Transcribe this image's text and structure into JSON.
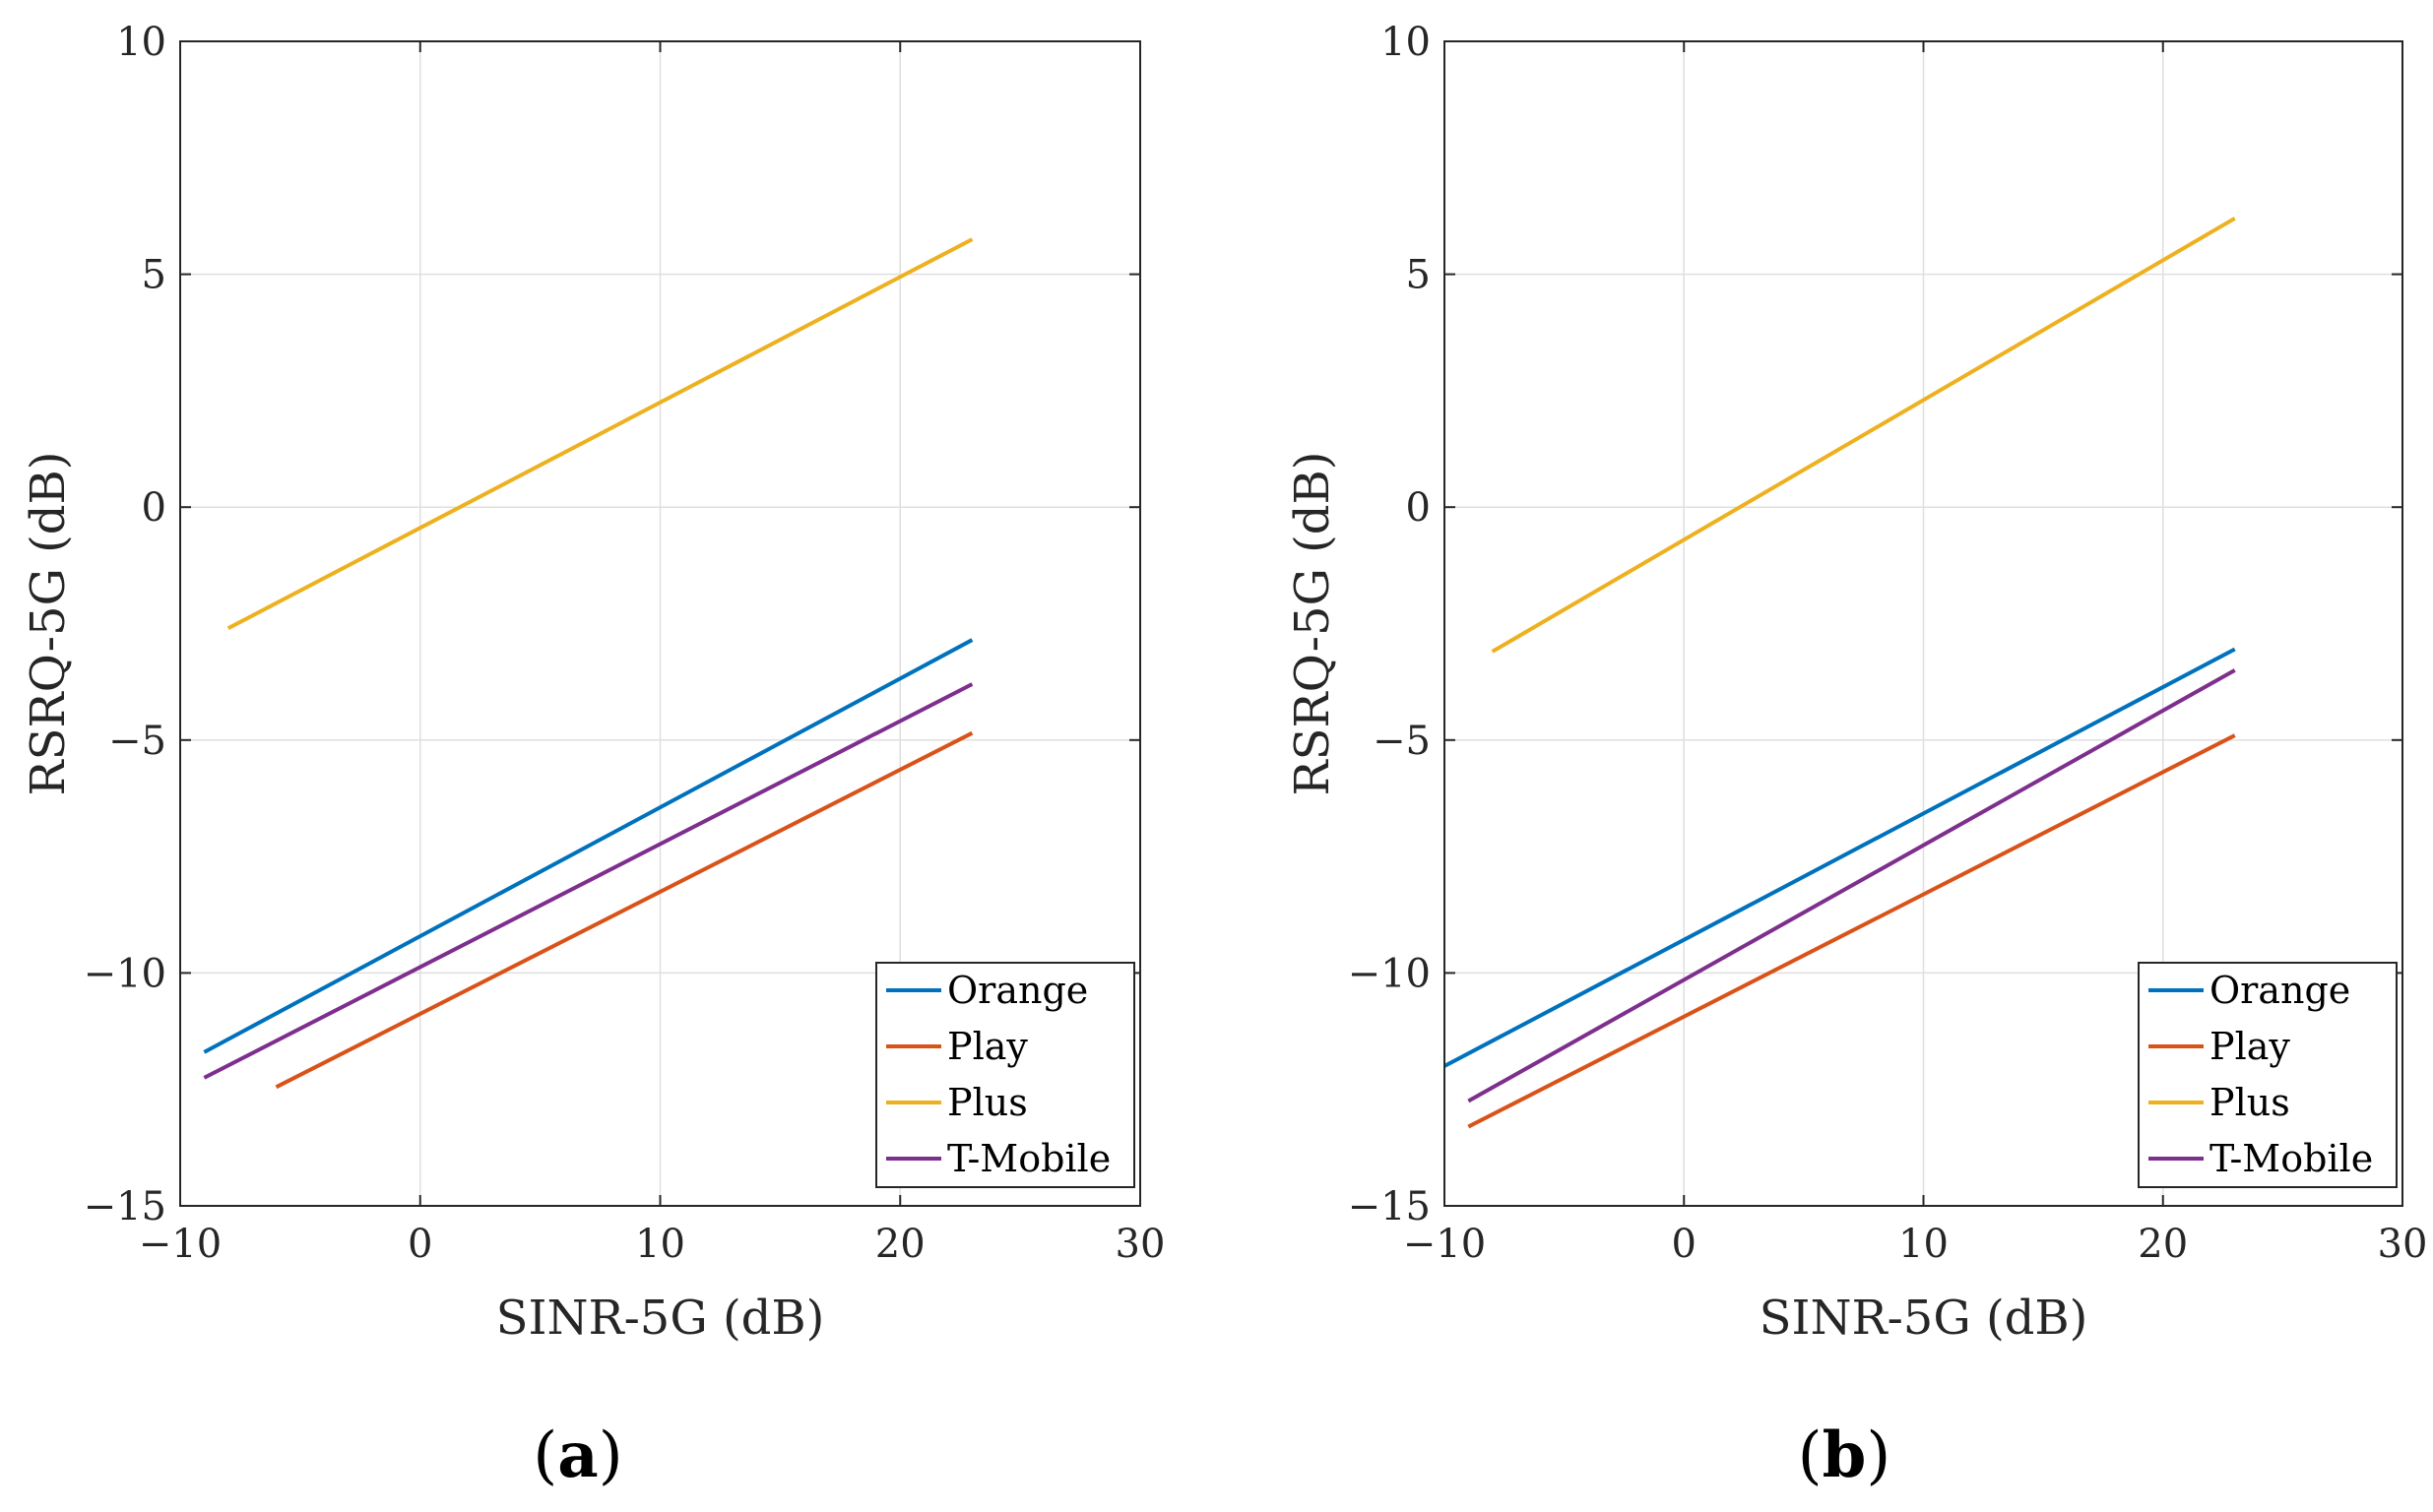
{
  "chart_data": [
    {
      "type": "line",
      "panel_label": "a",
      "xlabel": "SINR-5G  (dB)",
      "ylabel": "RSRQ-5G  (dB)",
      "xlim": [
        -10,
        30
      ],
      "ylim": [
        -15,
        10
      ],
      "xticks": [
        -10,
        0,
        10,
        20,
        30
      ],
      "yticks": [
        -15,
        -10,
        -5,
        0,
        5,
        10
      ],
      "xtick_labels": [
        "−10",
        "0",
        "10",
        "20",
        "30"
      ],
      "ytick_labels": [
        "−15",
        "−10",
        "−5",
        "0",
        "5",
        "10"
      ],
      "grid": true,
      "legend_position": "bottom-right",
      "series": [
        {
          "name": "Orange",
          "color": "#0072BD",
          "x": [
            -9,
            23
          ],
          "y": [
            -11.7,
            -2.85
          ]
        },
        {
          "name": "Play",
          "color": "#D95319",
          "x": [
            -6,
            23
          ],
          "y": [
            -12.45,
            -4.85
          ]
        },
        {
          "name": "Plus",
          "color": "#EDB120",
          "x": [
            -8,
            23
          ],
          "y": [
            -2.6,
            5.75
          ]
        },
        {
          "name": "T-Mobile",
          "color": "#7E2F8E",
          "x": [
            -9,
            23
          ],
          "y": [
            -12.25,
            -3.8
          ]
        }
      ]
    },
    {
      "type": "line",
      "panel_label": "b",
      "xlabel": "SINR-5G  (dB)",
      "ylabel": "RSRQ-5G  (dB)",
      "xlim": [
        -10,
        30
      ],
      "ylim": [
        -15,
        10
      ],
      "xticks": [
        -10,
        0,
        10,
        20,
        30
      ],
      "yticks": [
        -15,
        -10,
        -5,
        0,
        5,
        10
      ],
      "xtick_labels": [
        "−10",
        "0",
        "10",
        "20",
        "30"
      ],
      "ytick_labels": [
        "−15",
        "−10",
        "−5",
        "0",
        "5",
        "10"
      ],
      "grid": true,
      "legend_position": "bottom-right",
      "series": [
        {
          "name": "Orange",
          "color": "#0072BD",
          "x": [
            -10,
            23
          ],
          "y": [
            -12.0,
            -3.05
          ]
        },
        {
          "name": "Play",
          "color": "#D95319",
          "x": [
            -9,
            23
          ],
          "y": [
            -13.3,
            -4.9
          ]
        },
        {
          "name": "Plus",
          "color": "#EDB120",
          "x": [
            -8,
            23
          ],
          "y": [
            -3.1,
            6.2
          ]
        },
        {
          "name": "T-Mobile",
          "color": "#7E2F8E",
          "x": [
            -9,
            23
          ],
          "y": [
            -12.75,
            -3.5
          ]
        }
      ]
    }
  ]
}
